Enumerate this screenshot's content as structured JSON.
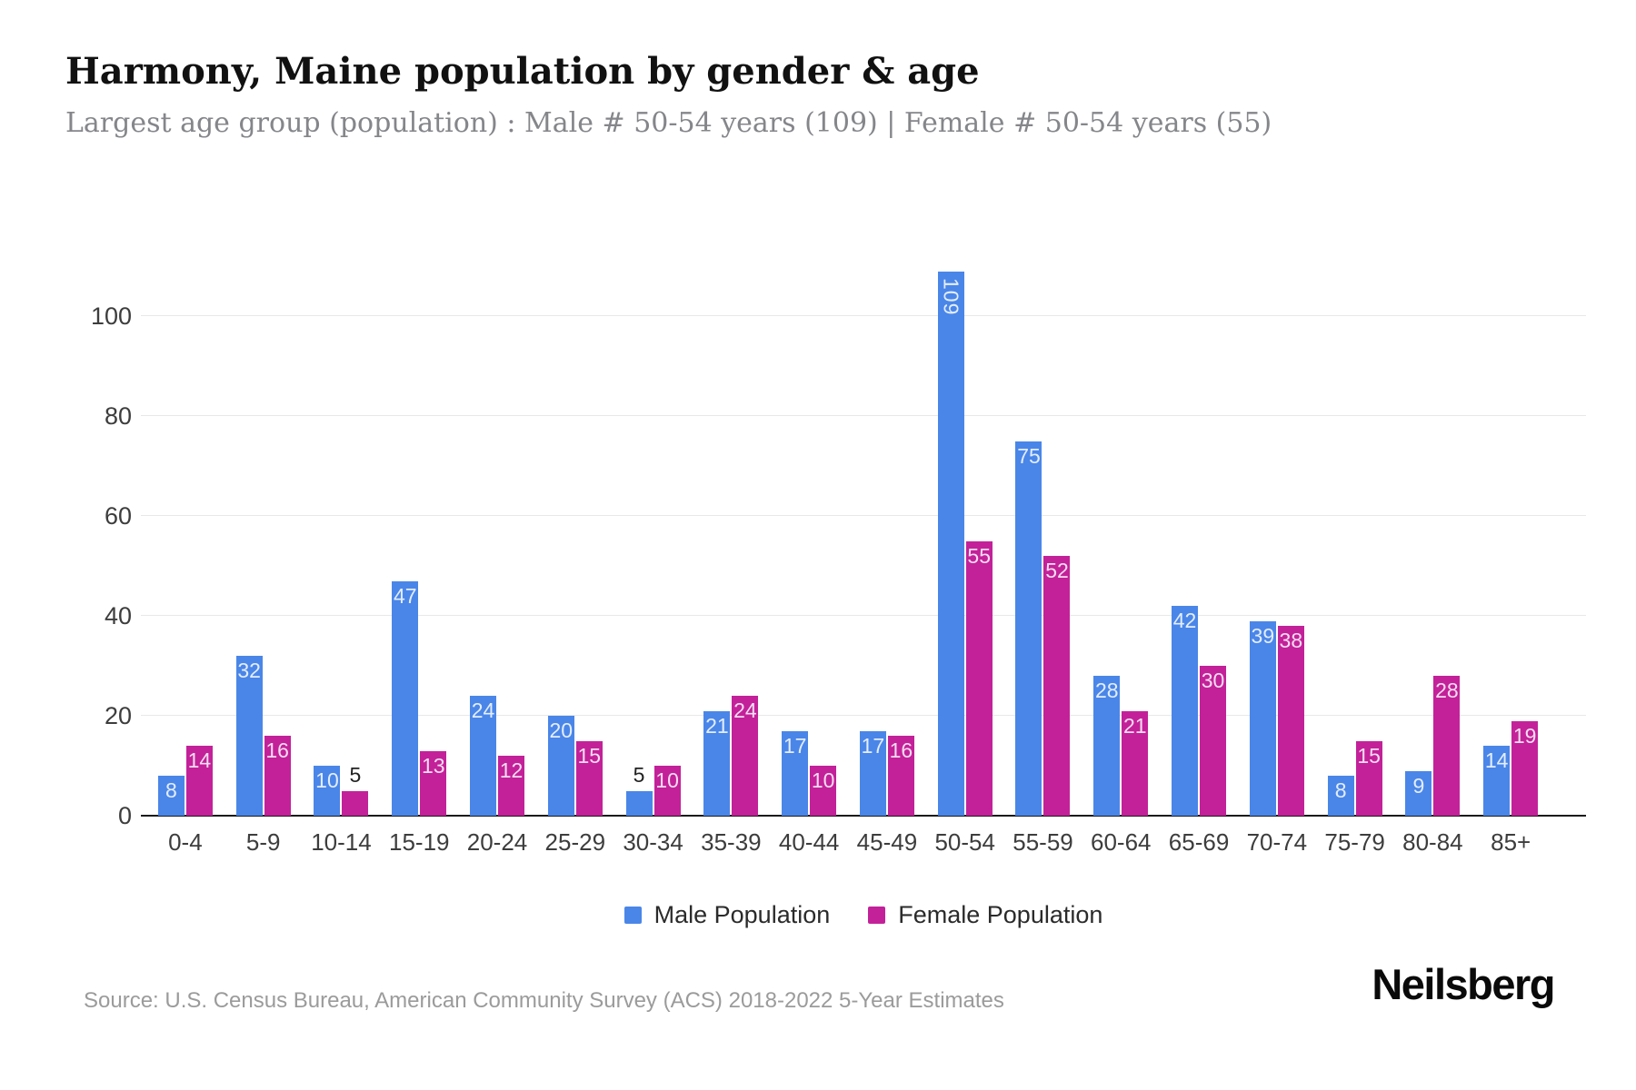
{
  "title": "Harmony, Maine population by gender & age",
  "subtitle": "Largest age group (population) : Male # 50-54 years (109) | Female # 50-54 years (55)",
  "chart_data": {
    "type": "bar",
    "title": "Harmony, Maine population by gender & age",
    "categories": [
      "0-4",
      "5-9",
      "10-14",
      "15-19",
      "20-24",
      "25-29",
      "30-34",
      "35-39",
      "40-44",
      "45-49",
      "50-54",
      "55-59",
      "60-64",
      "65-69",
      "70-74",
      "75-79",
      "80-84",
      "85+"
    ],
    "series": [
      {
        "name": "Male Population",
        "color": "#4a86e8",
        "values": [
          8,
          32,
          10,
          47,
          24,
          20,
          5,
          21,
          17,
          17,
          109,
          75,
          28,
          42,
          39,
          8,
          9,
          14
        ]
      },
      {
        "name": "Female Population",
        "color": "#c32199",
        "values": [
          14,
          16,
          5,
          13,
          12,
          15,
          10,
          24,
          10,
          16,
          55,
          52,
          21,
          30,
          38,
          15,
          28,
          19
        ]
      }
    ],
    "xlabel": "",
    "ylabel": "",
    "yticks": [
      0,
      20,
      40,
      60,
      80,
      100
    ],
    "ylim": [
      0,
      119
    ],
    "grid": true,
    "legend_position": "bottom",
    "bar_label_color_inside": "#ffffff",
    "bar_label_color_outside": "#222222"
  },
  "colors": {
    "male": "#4a86e8",
    "female": "#c32199",
    "grid": "#e8e8e8",
    "axis": "#1a1a1a",
    "title": "#111111",
    "subtitle": "#85868a",
    "source": "#9b9b9b"
  },
  "source": "Source: U.S. Census Bureau, American Community Survey (ACS) 2018-2022 5-Year Estimates",
  "logo": "Neilsberg"
}
